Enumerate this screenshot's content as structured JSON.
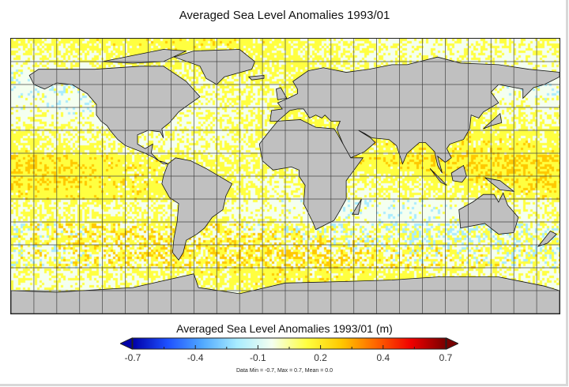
{
  "title": "Averaged Sea Level Anomalies 1993/01",
  "map": {
    "projection": "equirectangular",
    "graticule_spacing_deg": 15,
    "land_color": "#c0c0c0",
    "coastline_color": "#111111"
  },
  "colorbar": {
    "title": "Averaged Sea Level Anomalies 1993/01 (m)",
    "min": -0.7,
    "max": 0.7,
    "tick_labels": [
      "-0.7",
      "-0.4",
      "-0.1",
      "0.2",
      "0.4",
      "0.7"
    ],
    "colors": [
      "#0000a8",
      "#1e50ff",
      "#50a8ff",
      "#a8ecff",
      "#f4fff0",
      "#ffff40",
      "#ffc800",
      "#ff6400",
      "#f00000",
      "#780000"
    ],
    "extend": "both"
  },
  "stats": "Data Min = -0.7, Max = 0.7, Mean = 0.0"
}
